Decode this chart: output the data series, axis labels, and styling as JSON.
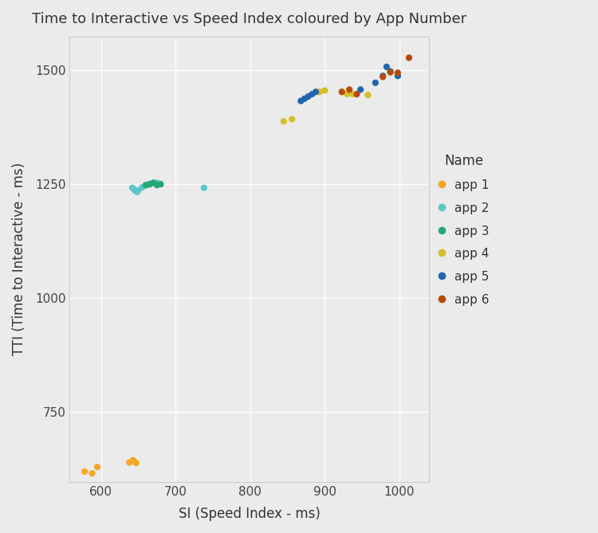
{
  "title": "Time to Interactive vs Speed Index coloured by App Number",
  "xlabel": "SI (Speed Index - ms)",
  "ylabel": "TTI (Time to Interactive - ms)",
  "background_color": "#ebebeb",
  "grid_color": "#ffffff",
  "apps": {
    "app 1": {
      "color": "#F5A623",
      "points": [
        [
          578,
          618
        ],
        [
          588,
          614
        ],
        [
          595,
          628
        ],
        [
          638,
          638
        ],
        [
          643,
          643
        ],
        [
          647,
          637
        ]
      ]
    },
    "app 2": {
      "color": "#5BC8C8",
      "points": [
        [
          642,
          1242
        ],
        [
          645,
          1237
        ],
        [
          648,
          1233
        ],
        [
          650,
          1236
        ],
        [
          655,
          1243
        ],
        [
          660,
          1248
        ],
        [
          665,
          1250
        ],
        [
          670,
          1253
        ],
        [
          675,
          1253
        ],
        [
          738,
          1242
        ]
      ]
    },
    "app 3": {
      "color": "#26A875",
      "points": [
        [
          660,
          1248
        ],
        [
          665,
          1250
        ],
        [
          670,
          1253
        ],
        [
          675,
          1248
        ],
        [
          680,
          1250
        ]
      ]
    },
    "app 4": {
      "color": "#D4C027",
      "points": [
        [
          845,
          1388
        ],
        [
          856,
          1393
        ],
        [
          893,
          1453
        ],
        [
          900,
          1456
        ],
        [
          923,
          1453
        ],
        [
          930,
          1448
        ],
        [
          938,
          1448
        ],
        [
          958,
          1446
        ]
      ]
    },
    "app 5": {
      "color": "#2166AC",
      "points": [
        [
          868,
          1433
        ],
        [
          873,
          1438
        ],
        [
          878,
          1443
        ],
        [
          883,
          1448
        ],
        [
          888,
          1453
        ],
        [
          948,
          1458
        ],
        [
          968,
          1473
        ],
        [
          978,
          1488
        ],
        [
          983,
          1508
        ],
        [
          988,
          1498
        ],
        [
          998,
          1488
        ]
      ]
    },
    "app 6": {
      "color": "#B84A09",
      "points": [
        [
          923,
          1453
        ],
        [
          933,
          1458
        ],
        [
          943,
          1448
        ],
        [
          978,
          1486
        ],
        [
          988,
          1496
        ],
        [
          998,
          1495
        ],
        [
          1013,
          1528
        ]
      ]
    }
  },
  "xlim": [
    558,
    1040
  ],
  "ylim": [
    595,
    1575
  ],
  "xticks": [
    600,
    700,
    800,
    900,
    1000
  ],
  "yticks": [
    750,
    1000,
    1250,
    1500
  ],
  "legend_title": "Name",
  "figsize": [
    7.5,
    6.69
  ],
  "dpi": 100,
  "marker_size": 35
}
